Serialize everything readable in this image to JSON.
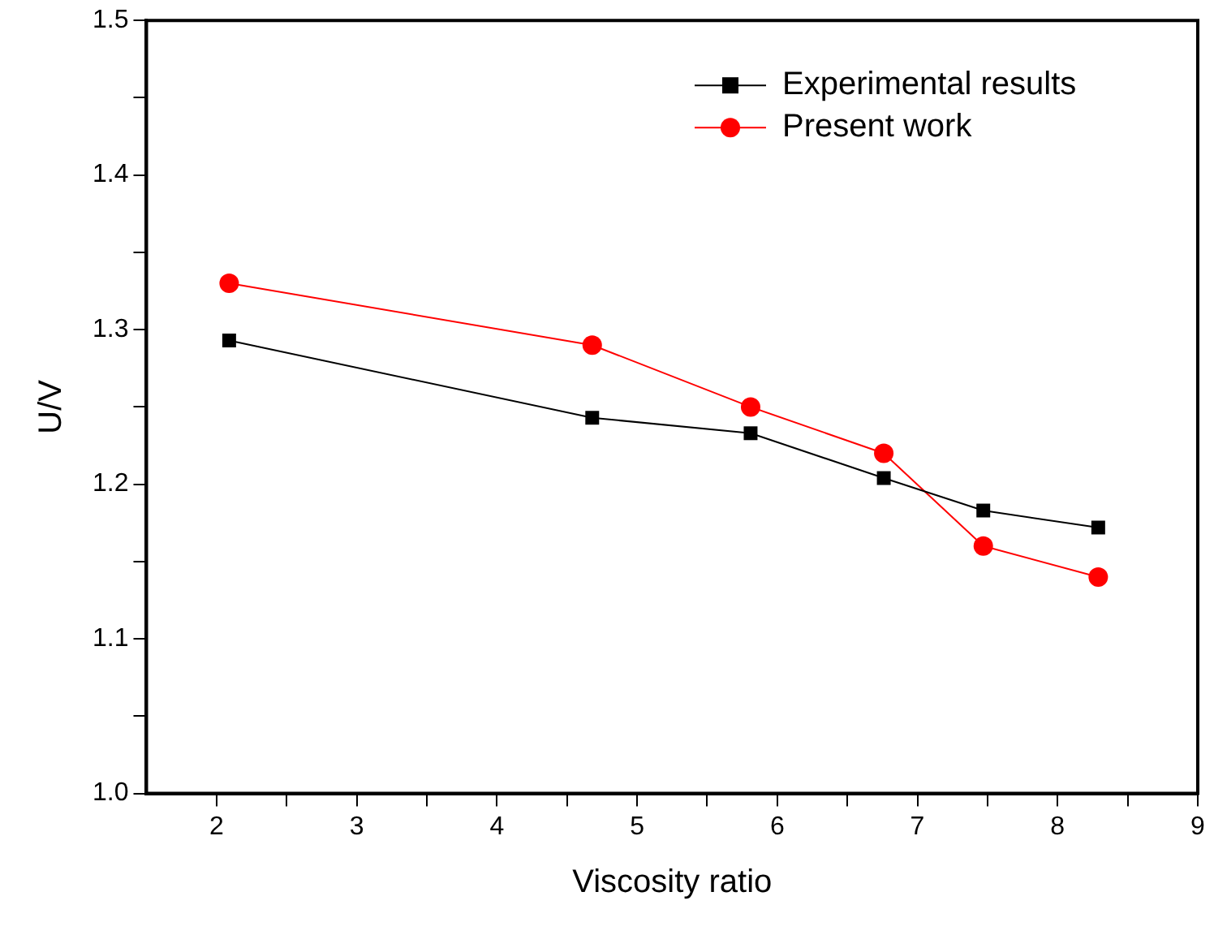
{
  "chart_data": {
    "type": "line",
    "xlabel": "Viscosity ratio",
    "ylabel": "U/V",
    "x": [
      2.09,
      4.68,
      5.81,
      6.76,
      7.47,
      8.29
    ],
    "series": [
      {
        "name": "Experimental results",
        "color": "#000000",
        "marker": "square",
        "values": [
          1.293,
          1.243,
          1.233,
          1.204,
          1.183,
          1.172
        ]
      },
      {
        "name": "Present work",
        "color": "#ff0000",
        "marker": "circle",
        "values": [
          1.33,
          1.29,
          1.25,
          1.22,
          1.16,
          1.14
        ]
      }
    ],
    "xlim": [
      1.5,
      9
    ],
    "ylim": [
      1.0,
      1.5
    ],
    "xticks": [
      2,
      {
        "value": 2.5,
        "label": null
      },
      3,
      {
        "value": 3.5,
        "label": null
      },
      4,
      {
        "value": 4.5,
        "label": null
      },
      5,
      {
        "value": 5.5,
        "label": null
      },
      6,
      {
        "value": 6.5,
        "label": null
      },
      7,
      {
        "value": 7.5,
        "label": null
      },
      8,
      {
        "value": 8.5,
        "label": null
      },
      9
    ],
    "yticks": [
      {
        "value": 1.0,
        "label": "1.0"
      },
      {
        "value": 1.05,
        "label": null
      },
      {
        "value": 1.1,
        "label": "1.1"
      },
      {
        "value": 1.15,
        "label": null
      },
      {
        "value": 1.2,
        "label": "1.2"
      },
      {
        "value": 1.25,
        "label": null
      },
      {
        "value": 1.3,
        "label": "1.3"
      },
      {
        "value": 1.35,
        "label": null
      },
      {
        "value": 1.4,
        "label": "1.4"
      },
      {
        "value": 1.45,
        "label": null
      },
      {
        "value": 1.5,
        "label": "1.5"
      }
    ],
    "grid": false,
    "legend": "top right",
    "line_style": "solid"
  }
}
